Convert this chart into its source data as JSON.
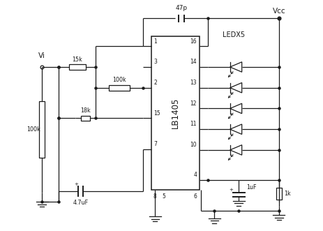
{
  "bg_color": "#ffffff",
  "line_color": "#1a1a1a",
  "chip_label": "LB1405",
  "figsize": [
    4.64,
    3.31
  ],
  "dpi": 100,
  "xlim": [
    0,
    10.0
  ],
  "ylim": [
    0,
    8.5
  ],
  "pin_labels_left": [
    "1",
    "3",
    "2",
    "15",
    "7",
    "8",
    "5"
  ],
  "pin_labels_right": [
    "16",
    "14",
    "13",
    "12",
    "11",
    "10",
    "4",
    "6"
  ],
  "led_pins": [
    "14",
    "13",
    "12",
    "11",
    "10"
  ],
  "comp_labels": {
    "R_100k_vert": "100k",
    "R_15k": "15k",
    "R_100k_horiz": "100k",
    "R_18k": "18k",
    "C_47p": "47p",
    "C_47uF": "4.7uF",
    "C_1uF": "1uF",
    "R_1k": "1k",
    "Vi": "Vi",
    "Vcc": "Vcc",
    "LEDX5": "LEDX5",
    "chip": "LB1405"
  }
}
